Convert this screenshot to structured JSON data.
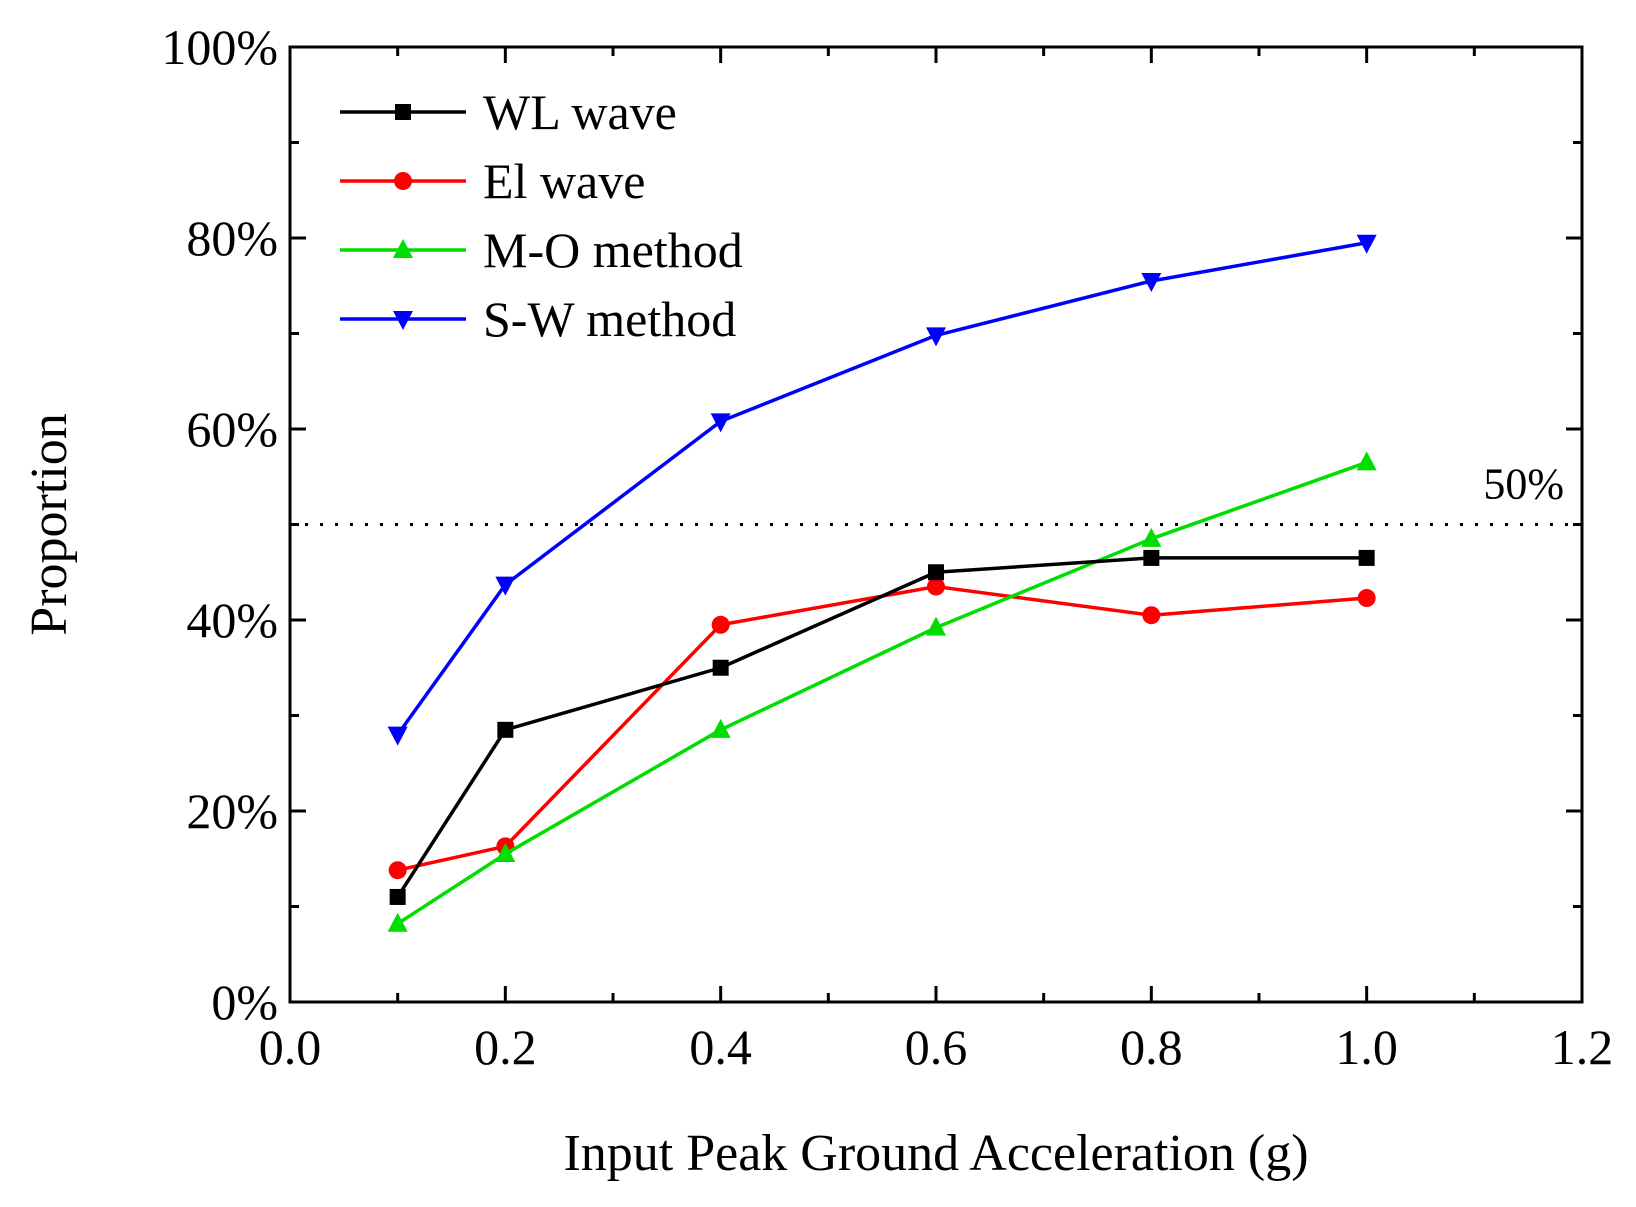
{
  "chart_data": {
    "type": "line",
    "title": "",
    "xlabel": "Input Peak Ground Acceleration (g)",
    "ylabel": "Proportion",
    "xlim": [
      0.0,
      1.2
    ],
    "ylim": [
      0,
      100
    ],
    "x_ticks": [
      0.0,
      0.2,
      0.4,
      0.6,
      0.8,
      1.0,
      1.2
    ],
    "x_tick_labels": [
      "0.0",
      "0.2",
      "0.4",
      "0.6",
      "0.8",
      "1.0",
      "1.2"
    ],
    "y_ticks": [
      0,
      20,
      40,
      60,
      80,
      100
    ],
    "y_tick_labels": [
      "0%",
      "20%",
      "40%",
      "60%",
      "80%",
      "100%"
    ],
    "grid": false,
    "legend_position": "top-left",
    "x": [
      0.1,
      0.2,
      0.4,
      0.6,
      0.8,
      1.0
    ],
    "series": [
      {
        "name": "WL wave",
        "color": "#000000",
        "marker": "square",
        "values": [
          11.0,
          28.5,
          35.0,
          45.0,
          46.5,
          46.5
        ]
      },
      {
        "name": "El wave",
        "color": "#ff0000",
        "marker": "circle",
        "values": [
          13.8,
          16.3,
          39.5,
          43.5,
          40.5,
          42.3
        ]
      },
      {
        "name": "M-O method",
        "color": "#00dd00",
        "marker": "triangle-up",
        "values": [
          8.2,
          15.5,
          28.5,
          39.2,
          48.5,
          56.5
        ]
      },
      {
        "name": "S-W method",
        "color": "#0000ff",
        "marker": "triangle-down",
        "values": [
          28.0,
          43.7,
          60.8,
          69.8,
          75.5,
          79.5
        ]
      }
    ],
    "reference_line": {
      "value": 50,
      "label": "50%",
      "style": "dotted"
    }
  }
}
